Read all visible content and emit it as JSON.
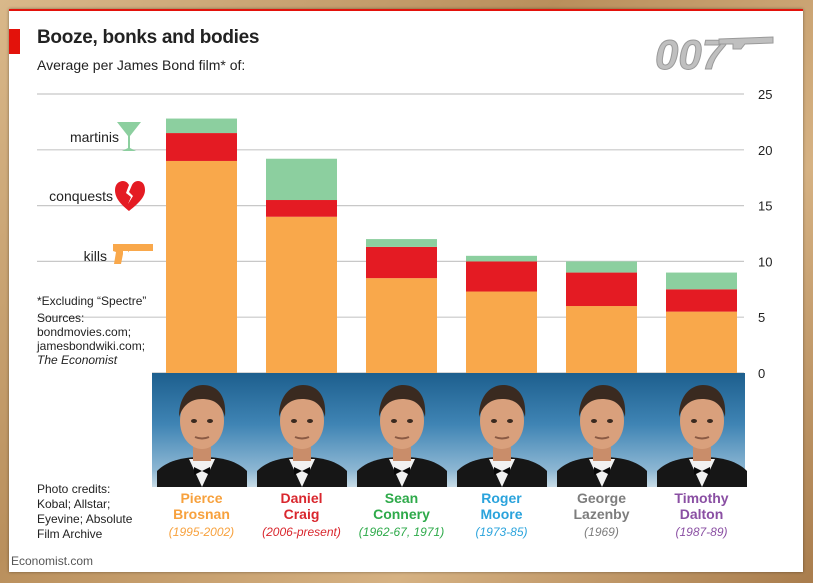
{
  "header": {
    "title": "Booze, bonks and bodies",
    "subtitle": "Average per James Bond film* of:",
    "logo_text": "007"
  },
  "legend": {
    "martinis": "martinis",
    "conquests": "conquests",
    "kills": "kills"
  },
  "notes": {
    "footnote": "*Excluding “Spectre”",
    "sources_label": "Sources:",
    "sources": [
      "bondmovies.com;",
      "jamesbondwiki.com;"
    ],
    "sources_italic": "The Economist"
  },
  "credits": [
    "Photo credits:",
    "Kobal; Allstar;",
    "Eyevine; Absolute",
    "Film Archive"
  ],
  "source_line": "Economist.com",
  "colors": {
    "kills": "#f9a84b",
    "conquests": "#e41b23",
    "martinis": "#8ccf9f",
    "accent_red": "#e3120b"
  },
  "chart_data": {
    "type": "bar",
    "stacked": true,
    "categories": [
      "Pierce Brosnan",
      "Daniel Craig",
      "Sean Connery",
      "Roger Moore",
      "George Lazenby",
      "Timothy Dalton"
    ],
    "series": [
      {
        "name": "kills",
        "values": [
          19.0,
          14.0,
          8.5,
          7.3,
          6.0,
          5.5
        ]
      },
      {
        "name": "conquests",
        "values": [
          2.5,
          1.5,
          2.8,
          2.7,
          3.0,
          2.0
        ]
      },
      {
        "name": "martinis",
        "values": [
          1.3,
          3.7,
          0.7,
          0.5,
          1.0,
          1.5
        ]
      }
    ],
    "ylim": [
      0,
      25
    ],
    "yticks": [
      0,
      5,
      10,
      15,
      20,
      25
    ],
    "y_axis_side": "right",
    "grid": true
  },
  "actors": [
    {
      "first": "Pierce",
      "last": "Brosnan",
      "years": "(1995-2002)",
      "color": "#f7a13d"
    },
    {
      "first": "Daniel",
      "last": "Craig",
      "years": "(2006-present)",
      "color": "#d9272e"
    },
    {
      "first": "Sean",
      "last": "Connery",
      "years": "(1962-67, 1971)",
      "color": "#2eaa4a"
    },
    {
      "first": "Roger",
      "last": "Moore",
      "years": "(1973-85)",
      "color": "#2aa3dc"
    },
    {
      "first": "George",
      "last": "Lazenby",
      "years": "(1969)",
      "color": "#7d7d7d"
    },
    {
      "first": "Timothy",
      "last": "Dalton",
      "years": "(1987-89)",
      "color": "#8a4fa3"
    }
  ]
}
